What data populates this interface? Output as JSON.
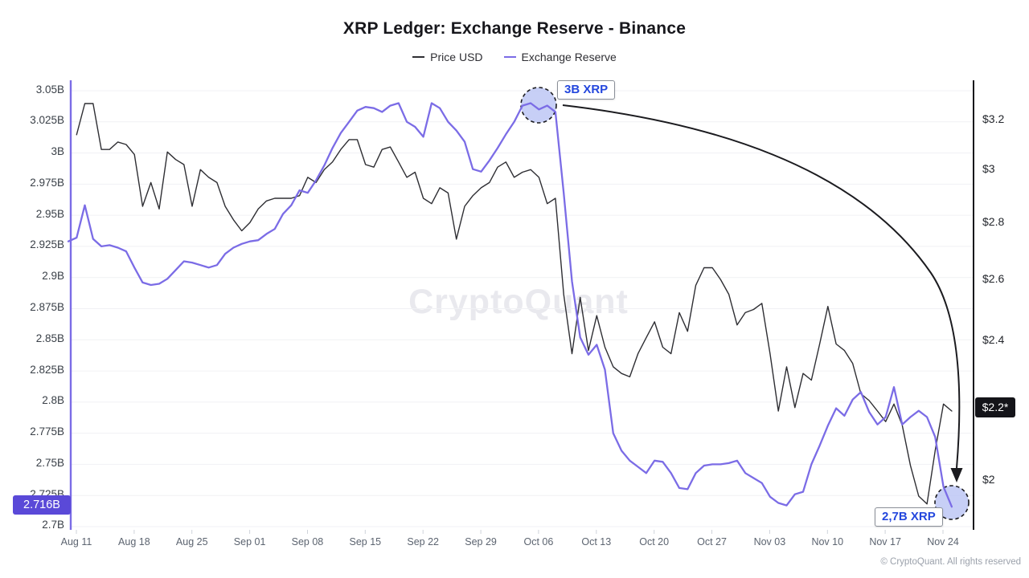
{
  "header": {
    "title": "XRP Ledger: Exchange Reserve - Binance"
  },
  "legend": {
    "items": [
      {
        "label": "Price USD",
        "color": "#2e2e33"
      },
      {
        "label": "Exchange Reserve",
        "color": "#7b6ce6"
      }
    ]
  },
  "watermark": {
    "text": "CryptoQuant"
  },
  "footer": {
    "copyright": "© CryptoQuant. All rights reserved"
  },
  "annotations": {
    "peak": {
      "label": "3B XRP"
    },
    "trough": {
      "label": "2,7B XRP"
    },
    "reserve_badge": "2.716B",
    "price_badge": "$2.2*"
  },
  "chart_data": {
    "type": "line",
    "title": "XRP Ledger: Exchange Reserve - Binance",
    "x_start_date": "Aug 10",
    "x_tick_labels": [
      "Aug 11",
      "Aug 18",
      "Aug 25",
      "Sep 01",
      "Sep 08",
      "Sep 15",
      "Sep 22",
      "Sep 29",
      "Oct 06",
      "Oct 13",
      "Oct 20",
      "Oct 27",
      "Nov 03",
      "Nov 10",
      "Nov 17",
      "Nov 24"
    ],
    "left_axis": {
      "name": "Exchange Reserve (XRP, billions)",
      "scale": "linear",
      "tick_labels": [
        "3.05B",
        "3.025B",
        "3B",
        "2.975B",
        "2.95B",
        "2.925B",
        "2.9B",
        "2.875B",
        "2.85B",
        "2.825B",
        "2.8B",
        "2.775B",
        "2.75B",
        "2.725B",
        "2.7B"
      ],
      "tick_values": [
        3.05,
        3.025,
        3.0,
        2.975,
        2.95,
        2.925,
        2.9,
        2.875,
        2.85,
        2.825,
        2.8,
        2.775,
        2.75,
        2.725,
        2.7
      ],
      "current_value": 2.716
    },
    "right_axis": {
      "name": "Price USD",
      "scale": "log",
      "tick_labels": [
        "$3.2",
        "$3",
        "$2.8",
        "$2.6",
        "$2.4",
        "$2"
      ],
      "tick_values": [
        3.2,
        3.0,
        2.8,
        2.6,
        2.4,
        2.0
      ],
      "current_value": 2.2
    },
    "grid": "horizontal",
    "legend_position": "top",
    "series": [
      {
        "name": "Price USD",
        "axis": "right",
        "color": "#2e2e33",
        "values": [
          null,
          3.14,
          3.27,
          3.27,
          3.08,
          3.08,
          3.11,
          3.1,
          3.06,
          2.86,
          2.95,
          2.85,
          3.07,
          3.04,
          3.02,
          2.86,
          3.0,
          2.97,
          2.95,
          2.86,
          2.81,
          2.77,
          2.8,
          2.85,
          2.88,
          2.89,
          2.89,
          2.89,
          2.9,
          2.97,
          2.95,
          3.0,
          3.03,
          3.08,
          3.12,
          3.12,
          3.02,
          3.01,
          3.08,
          3.09,
          3.03,
          2.97,
          2.99,
          2.89,
          2.87,
          2.93,
          2.91,
          2.74,
          2.86,
          2.9,
          2.93,
          2.95,
          3.01,
          3.03,
          2.97,
          2.99,
          3.0,
          2.97,
          2.87,
          2.89,
          2.55,
          2.36,
          2.54,
          2.37,
          2.48,
          2.38,
          2.32,
          2.3,
          2.29,
          2.36,
          2.41,
          2.46,
          2.38,
          2.36,
          2.49,
          2.43,
          2.58,
          2.64,
          2.64,
          2.6,
          2.55,
          2.45,
          2.49,
          2.5,
          2.52,
          2.36,
          2.19,
          2.32,
          2.2,
          2.3,
          2.28,
          2.39,
          2.51,
          2.39,
          2.37,
          2.33,
          2.24,
          2.22,
          2.19,
          2.16,
          2.21,
          2.15,
          2.04,
          1.96,
          1.94,
          2.08,
          2.21,
          2.19
        ]
      },
      {
        "name": "Exchange Reserve",
        "axis": "left",
        "color": "#7b6ce6",
        "values": [
          2.929,
          2.932,
          2.958,
          2.931,
          2.925,
          2.926,
          2.924,
          2.921,
          2.908,
          2.896,
          2.894,
          2.895,
          2.899,
          2.906,
          2.913,
          2.912,
          2.91,
          2.908,
          2.91,
          2.919,
          2.924,
          2.927,
          2.929,
          2.93,
          2.935,
          2.939,
          2.951,
          2.958,
          2.97,
          2.968,
          2.978,
          2.99,
          3.004,
          3.016,
          3.025,
          3.034,
          3.037,
          3.036,
          3.033,
          3.038,
          3.04,
          3.025,
          3.021,
          3.013,
          3.04,
          3.036,
          3.025,
          3.018,
          3.009,
          2.987,
          2.985,
          2.994,
          3.004,
          3.015,
          3.025,
          3.038,
          3.04,
          3.035,
          3.038,
          3.033,
          2.968,
          2.897,
          2.852,
          2.838,
          2.846,
          2.826,
          2.775,
          2.761,
          2.753,
          2.748,
          2.743,
          2.753,
          2.752,
          2.743,
          2.731,
          2.73,
          2.743,
          2.749,
          2.75,
          2.75,
          2.751,
          2.753,
          2.743,
          2.739,
          2.735,
          2.724,
          2.719,
          2.717,
          2.726,
          2.728,
          2.75,
          2.765,
          2.781,
          2.795,
          2.789,
          2.802,
          2.808,
          2.792,
          2.782,
          2.788,
          2.812,
          2.782,
          2.788,
          2.793,
          2.788,
          2.772,
          2.732,
          2.716
        ]
      }
    ]
  }
}
